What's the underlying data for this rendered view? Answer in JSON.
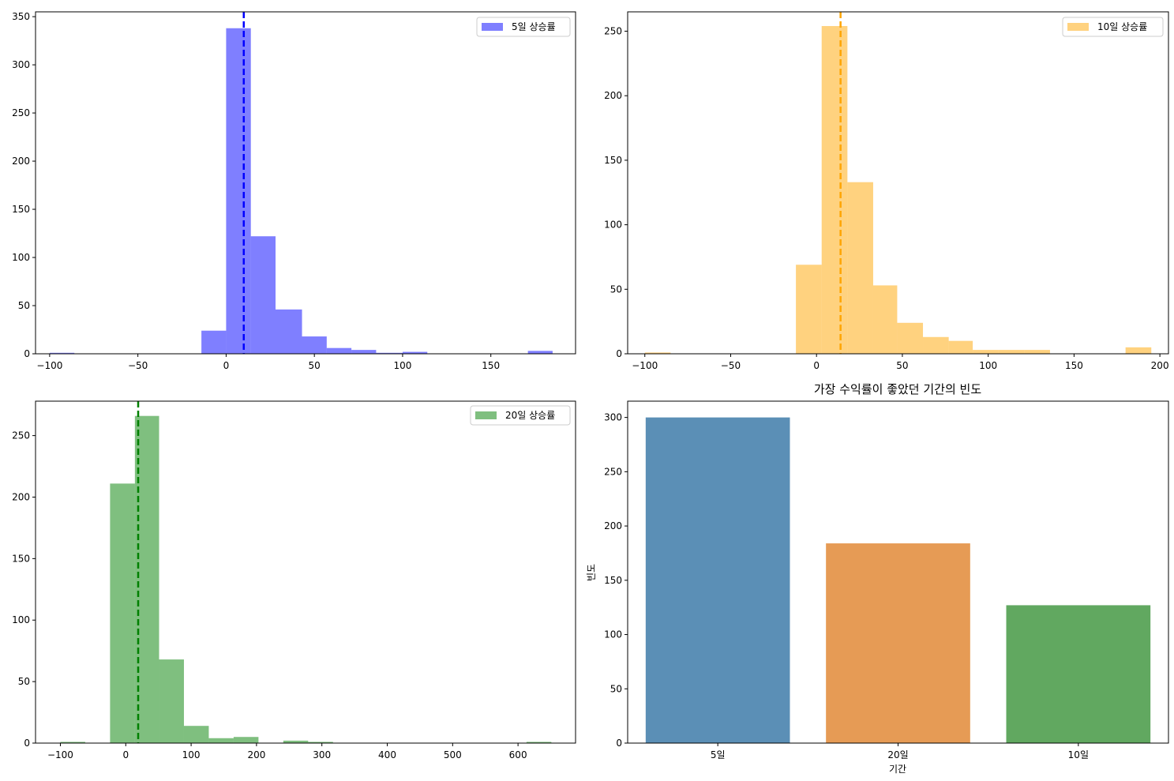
{
  "chart_data": [
    {
      "type": "histogram",
      "id": "hist-5d",
      "color": "#0000ff",
      "opacity": 0.5,
      "legend_label": "5일 상승률",
      "legend_position": "top-right",
      "mean_line": 10,
      "xlim": [
        -108,
        198
      ],
      "ylim": [
        0,
        355
      ],
      "xticks": [
        -100,
        -50,
        0,
        50,
        100,
        150
      ],
      "xtick_labels": [
        "−100",
        "−50",
        "0",
        "50",
        "100",
        "150"
      ],
      "yticks": [
        0,
        50,
        100,
        150,
        200,
        250,
        300,
        350
      ],
      "ytick_labels": [
        "0",
        "50",
        "100",
        "150",
        "200",
        "250",
        "300",
        "350"
      ],
      "bins": [
        {
          "x0": -100,
          "x1": -86,
          "count": 1
        },
        {
          "x0": -14,
          "x1": 0,
          "count": 24
        },
        {
          "x0": 0,
          "x1": 14,
          "count": 338
        },
        {
          "x0": 14,
          "x1": 28,
          "count": 122
        },
        {
          "x0": 28,
          "x1": 43,
          "count": 46
        },
        {
          "x0": 43,
          "x1": 57,
          "count": 18
        },
        {
          "x0": 57,
          "x1": 71,
          "count": 6
        },
        {
          "x0": 71,
          "x1": 85,
          "count": 4
        },
        {
          "x0": 85,
          "x1": 100,
          "count": 1
        },
        {
          "x0": 100,
          "x1": 114,
          "count": 2
        },
        {
          "x0": 171,
          "x1": 185,
          "count": 3
        }
      ]
    },
    {
      "type": "histogram",
      "id": "hist-10d",
      "color": "#ffa500",
      "opacity": 0.5,
      "legend_label": "10일 상승률",
      "legend_position": "top-right",
      "mean_line": 14,
      "xlim": [
        -110,
        205
      ],
      "ylim": [
        0,
        265
      ],
      "xticks": [
        -100,
        -50,
        0,
        50,
        100,
        150,
        200
      ],
      "xtick_labels": [
        "−100",
        "−50",
        "0",
        "50",
        "100",
        "150",
        "200"
      ],
      "yticks": [
        0,
        50,
        100,
        150,
        200,
        250
      ],
      "ytick_labels": [
        "0",
        "50",
        "100",
        "150",
        "200",
        "250"
      ],
      "bins": [
        {
          "x0": -100,
          "x1": -85,
          "count": 1
        },
        {
          "x0": -12,
          "x1": 3,
          "count": 69
        },
        {
          "x0": 3,
          "x1": 18,
          "count": 254
        },
        {
          "x0": 18,
          "x1": 33,
          "count": 133
        },
        {
          "x0": 33,
          "x1": 47,
          "count": 53
        },
        {
          "x0": 47,
          "x1": 62,
          "count": 24
        },
        {
          "x0": 62,
          "x1": 77,
          "count": 13
        },
        {
          "x0": 77,
          "x1": 91,
          "count": 10
        },
        {
          "x0": 91,
          "x1": 106,
          "count": 3
        },
        {
          "x0": 106,
          "x1": 121,
          "count": 3
        },
        {
          "x0": 121,
          "x1": 136,
          "count": 3
        },
        {
          "x0": 180,
          "x1": 195,
          "count": 5
        }
      ]
    },
    {
      "type": "histogram",
      "id": "hist-20d",
      "color": "#008000",
      "opacity": 0.5,
      "legend_label": "20일 상승률",
      "legend_position": "top-right",
      "mean_line": 19,
      "xlim": [
        -138,
        688
      ],
      "ylim": [
        0,
        278
      ],
      "xticks": [
        -100,
        0,
        100,
        200,
        300,
        400,
        500,
        600
      ],
      "xtick_labels": [
        "−100",
        "0",
        "100",
        "200",
        "300",
        "400",
        "500",
        "600"
      ],
      "yticks": [
        0,
        50,
        100,
        150,
        200,
        250
      ],
      "ytick_labels": [
        "0",
        "50",
        "100",
        "150",
        "200",
        "250"
      ],
      "bins": [
        {
          "x0": -100,
          "x1": -62,
          "count": 1
        },
        {
          "x0": -24,
          "x1": 14,
          "count": 211
        },
        {
          "x0": 14,
          "x1": 51,
          "count": 266
        },
        {
          "x0": 51,
          "x1": 89,
          "count": 68
        },
        {
          "x0": 89,
          "x1": 127,
          "count": 14
        },
        {
          "x0": 127,
          "x1": 165,
          "count": 4
        },
        {
          "x0": 165,
          "x1": 203,
          "count": 5
        },
        {
          "x0": 241,
          "x1": 279,
          "count": 2
        },
        {
          "x0": 279,
          "x1": 317,
          "count": 1
        },
        {
          "x0": 613,
          "x1": 651,
          "count": 1
        }
      ]
    },
    {
      "type": "bar",
      "id": "best-period",
      "title": "가장 수익률이 좋았던 기간의 빈도",
      "xlabel": "기간",
      "ylabel": "빈도",
      "categories": [
        "5일",
        "20일",
        "10일"
      ],
      "values": [
        300,
        184,
        127
      ],
      "colors": [
        "#5b8fb6",
        "#e69b55",
        "#61a860"
      ],
      "ylim": [
        0,
        315
      ],
      "yticks": [
        0,
        50,
        100,
        150,
        200,
        250,
        300
      ],
      "ytick_labels": [
        "0",
        "50",
        "100",
        "150",
        "200",
        "250",
        "300"
      ]
    }
  ]
}
